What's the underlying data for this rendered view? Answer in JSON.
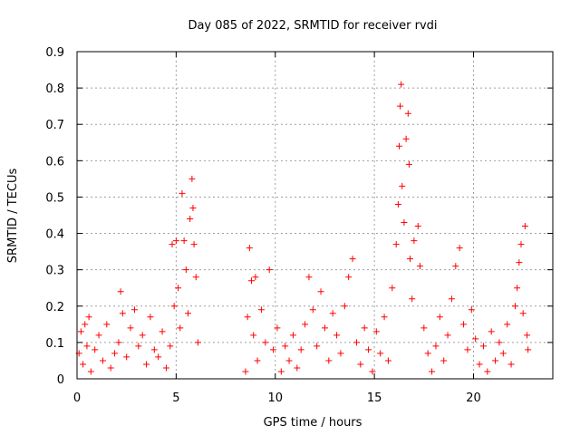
{
  "chart_data": {
    "type": "scatter",
    "title": "Day 085 of 2022, SRMTID for receiver rvdi",
    "xlabel": "GPS time / hours",
    "ylabel": "SRMTID / TECUs",
    "xlim": [
      0,
      24
    ],
    "ylim": [
      0,
      0.9
    ],
    "xticks": [
      0,
      5,
      10,
      15,
      20
    ],
    "yticks": [
      0,
      0.1,
      0.2,
      0.3,
      0.4,
      0.5,
      0.6,
      0.7,
      0.8,
      0.9
    ],
    "xtick_labels": [
      "0",
      "5",
      "10",
      "15",
      "20"
    ],
    "ytick_labels": [
      "0",
      "0.1",
      "0.2",
      "0.3",
      "0.4",
      "0.5",
      "0.6",
      "0.7",
      "0.8",
      "0.9"
    ],
    "grid": true,
    "marker": "+",
    "color": "#ff0000",
    "series": [
      {
        "name": "SRMTID",
        "points": [
          [
            0.1,
            0.07
          ],
          [
            0.2,
            0.13
          ],
          [
            0.3,
            0.04
          ],
          [
            0.4,
            0.15
          ],
          [
            0.5,
            0.09
          ],
          [
            0.6,
            0.17
          ],
          [
            0.7,
            0.02
          ],
          [
            0.9,
            0.08
          ],
          [
            1.1,
            0.12
          ],
          [
            1.3,
            0.05
          ],
          [
            1.5,
            0.15
          ],
          [
            1.7,
            0.03
          ],
          [
            1.9,
            0.07
          ],
          [
            2.1,
            0.1
          ],
          [
            2.2,
            0.24
          ],
          [
            2.3,
            0.18
          ],
          [
            2.5,
            0.06
          ],
          [
            2.7,
            0.14
          ],
          [
            2.9,
            0.19
          ],
          [
            3.1,
            0.09
          ],
          [
            3.3,
            0.12
          ],
          [
            3.5,
            0.04
          ],
          [
            3.7,
            0.17
          ],
          [
            3.9,
            0.08
          ],
          [
            4.1,
            0.06
          ],
          [
            4.3,
            0.13
          ],
          [
            4.5,
            0.03
          ],
          [
            4.7,
            0.09
          ],
          [
            4.8,
            0.37
          ],
          [
            4.9,
            0.2
          ],
          [
            5.0,
            0.38
          ],
          [
            5.1,
            0.25
          ],
          [
            5.2,
            0.14
          ],
          [
            5.3,
            0.51
          ],
          [
            5.4,
            0.38
          ],
          [
            5.5,
            0.3
          ],
          [
            5.6,
            0.18
          ],
          [
            5.7,
            0.44
          ],
          [
            5.8,
            0.55
          ],
          [
            5.85,
            0.47
          ],
          [
            5.9,
            0.37
          ],
          [
            6.0,
            0.28
          ],
          [
            6.1,
            0.1
          ],
          [
            8.5,
            0.02
          ],
          [
            8.6,
            0.17
          ],
          [
            8.7,
            0.36
          ],
          [
            8.8,
            0.27
          ],
          [
            8.9,
            0.12
          ],
          [
            9.0,
            0.28
          ],
          [
            9.1,
            0.05
          ],
          [
            9.3,
            0.19
          ],
          [
            9.5,
            0.1
          ],
          [
            9.7,
            0.3
          ],
          [
            9.9,
            0.08
          ],
          [
            10.1,
            0.14
          ],
          [
            10.3,
            0.02
          ],
          [
            10.5,
            0.09
          ],
          [
            10.7,
            0.05
          ],
          [
            10.9,
            0.12
          ],
          [
            11.1,
            0.03
          ],
          [
            11.3,
            0.08
          ],
          [
            11.5,
            0.15
          ],
          [
            11.7,
            0.28
          ],
          [
            11.9,
            0.19
          ],
          [
            12.1,
            0.09
          ],
          [
            12.3,
            0.24
          ],
          [
            12.5,
            0.14
          ],
          [
            12.7,
            0.05
          ],
          [
            12.9,
            0.18
          ],
          [
            13.1,
            0.12
          ],
          [
            13.3,
            0.07
          ],
          [
            13.5,
            0.2
          ],
          [
            13.7,
            0.28
          ],
          [
            13.9,
            0.33
          ],
          [
            14.1,
            0.1
          ],
          [
            14.3,
            0.04
          ],
          [
            14.5,
            0.14
          ],
          [
            14.7,
            0.08
          ],
          [
            14.9,
            0.02
          ],
          [
            15.1,
            0.13
          ],
          [
            15.3,
            0.07
          ],
          [
            15.5,
            0.17
          ],
          [
            15.7,
            0.05
          ],
          [
            15.9,
            0.25
          ],
          [
            16.1,
            0.37
          ],
          [
            16.2,
            0.48
          ],
          [
            16.25,
            0.64
          ],
          [
            16.3,
            0.75
          ],
          [
            16.35,
            0.81
          ],
          [
            16.4,
            0.53
          ],
          [
            16.5,
            0.43
          ],
          [
            16.6,
            0.66
          ],
          [
            16.7,
            0.73
          ],
          [
            16.75,
            0.59
          ],
          [
            16.8,
            0.33
          ],
          [
            16.9,
            0.22
          ],
          [
            17.0,
            0.38
          ],
          [
            17.2,
            0.42
          ],
          [
            17.3,
            0.31
          ],
          [
            17.5,
            0.14
          ],
          [
            17.7,
            0.07
          ],
          [
            17.9,
            0.02
          ],
          [
            18.1,
            0.09
          ],
          [
            18.3,
            0.17
          ],
          [
            18.5,
            0.05
          ],
          [
            18.7,
            0.12
          ],
          [
            18.9,
            0.22
          ],
          [
            19.1,
            0.31
          ],
          [
            19.3,
            0.36
          ],
          [
            19.5,
            0.15
          ],
          [
            19.7,
            0.08
          ],
          [
            19.9,
            0.19
          ],
          [
            20.1,
            0.11
          ],
          [
            20.3,
            0.04
          ],
          [
            20.5,
            0.09
          ],
          [
            20.7,
            0.02
          ],
          [
            20.9,
            0.13
          ],
          [
            21.1,
            0.05
          ],
          [
            21.3,
            0.1
          ],
          [
            21.5,
            0.07
          ],
          [
            21.7,
            0.15
          ],
          [
            21.9,
            0.04
          ],
          [
            22.1,
            0.2
          ],
          [
            22.2,
            0.25
          ],
          [
            22.3,
            0.32
          ],
          [
            22.4,
            0.37
          ],
          [
            22.5,
            0.18
          ],
          [
            22.6,
            0.42
          ],
          [
            22.7,
            0.12
          ],
          [
            22.75,
            0.08
          ]
        ]
      }
    ]
  }
}
